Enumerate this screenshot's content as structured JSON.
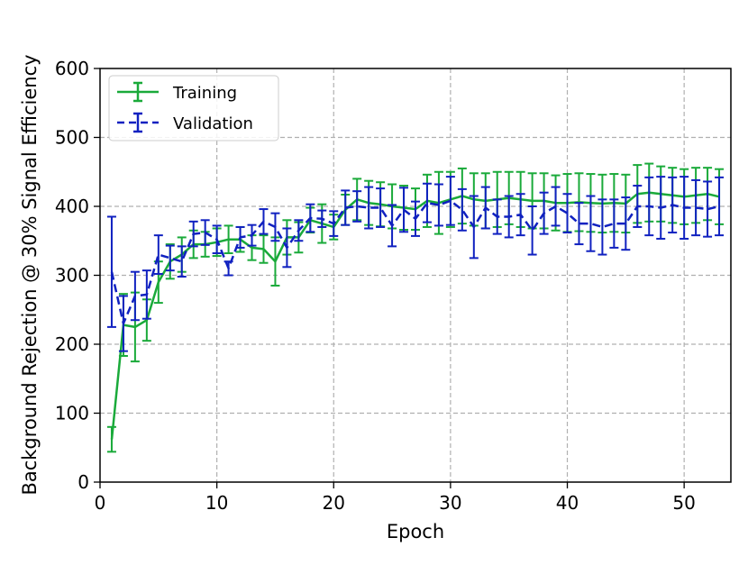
{
  "chart_data": {
    "type": "line",
    "xlabel": "Epoch",
    "ylabel": "Background Rejection @ 30% Signal Efficiency",
    "xlim": [
      0,
      54
    ],
    "ylim": [
      0,
      600
    ],
    "x_ticks": [
      0,
      10,
      20,
      30,
      40,
      50
    ],
    "y_ticks": [
      0,
      100,
      200,
      300,
      400,
      500,
      600
    ],
    "grid": true,
    "legend_position": "top-left",
    "series": [
      {
        "name": "Training",
        "color": "#1aaa3a",
        "style": "solid",
        "x": [
          1,
          2,
          3,
          4,
          5,
          6,
          7,
          8,
          9,
          10,
          11,
          12,
          13,
          14,
          15,
          16,
          17,
          18,
          19,
          20,
          21,
          22,
          23,
          24,
          25,
          26,
          27,
          28,
          29,
          30,
          31,
          32,
          33,
          34,
          35,
          36,
          37,
          38,
          39,
          40,
          41,
          42,
          43,
          44,
          45,
          46,
          47,
          48,
          49,
          50,
          51,
          52,
          53
        ],
        "y": [
          62,
          228,
          225,
          235,
          290,
          320,
          330,
          345,
          345,
          348,
          352,
          352,
          340,
          338,
          320,
          355,
          355,
          380,
          375,
          370,
          395,
          410,
          405,
          403,
          400,
          398,
          396,
          408,
          405,
          410,
          415,
          410,
          408,
          410,
          412,
          410,
          408,
          408,
          405,
          405,
          406,
          405,
          404,
          405,
          404,
          418,
          420,
          418,
          416,
          414,
          416,
          418,
          414
        ],
        "err": [
          18,
          45,
          50,
          30,
          30,
          25,
          25,
          20,
          18,
          20,
          20,
          18,
          18,
          20,
          35,
          25,
          22,
          18,
          28,
          18,
          22,
          30,
          32,
          32,
          32,
          32,
          30,
          38,
          45,
          40,
          40,
          38,
          40,
          40,
          38,
          40,
          40,
          40,
          40,
          42,
          42,
          42,
          42,
          42,
          42,
          42,
          42,
          40,
          40,
          40,
          40,
          38,
          40
        ]
      },
      {
        "name": "Validation",
        "color": "#1021c0",
        "style": "dashed",
        "x": [
          1,
          2,
          3,
          4,
          5,
          6,
          7,
          8,
          9,
          10,
          11,
          12,
          13,
          14,
          15,
          16,
          17,
          18,
          19,
          20,
          21,
          22,
          23,
          24,
          25,
          26,
          27,
          28,
          29,
          30,
          31,
          32,
          33,
          34,
          35,
          36,
          37,
          38,
          39,
          40,
          41,
          42,
          43,
          44,
          45,
          46,
          47,
          48,
          49,
          50,
          51,
          52,
          53
        ],
        "y": [
          305,
          230,
          270,
          272,
          330,
          325,
          320,
          360,
          362,
          352,
          310,
          355,
          358,
          378,
          370,
          340,
          365,
          383,
          382,
          375,
          398,
          400,
          398,
          398,
          372,
          395,
          382,
          405,
          402,
          408,
          395,
          370,
          398,
          385,
          385,
          388,
          365,
          390,
          400,
          390,
          375,
          375,
          370,
          375,
          375,
          400,
          400,
          398,
          402,
          398,
          398,
          396,
          400
        ],
        "err": [
          80,
          40,
          35,
          35,
          28,
          18,
          22,
          18,
          18,
          20,
          10,
          15,
          15,
          18,
          20,
          28,
          15,
          20,
          12,
          18,
          25,
          22,
          30,
          28,
          30,
          32,
          25,
          28,
          30,
          35,
          30,
          45,
          30,
          25,
          30,
          30,
          35,
          30,
          28,
          28,
          30,
          40,
          40,
          35,
          38,
          30,
          42,
          45,
          40,
          45,
          40,
          40,
          42
        ]
      }
    ]
  }
}
